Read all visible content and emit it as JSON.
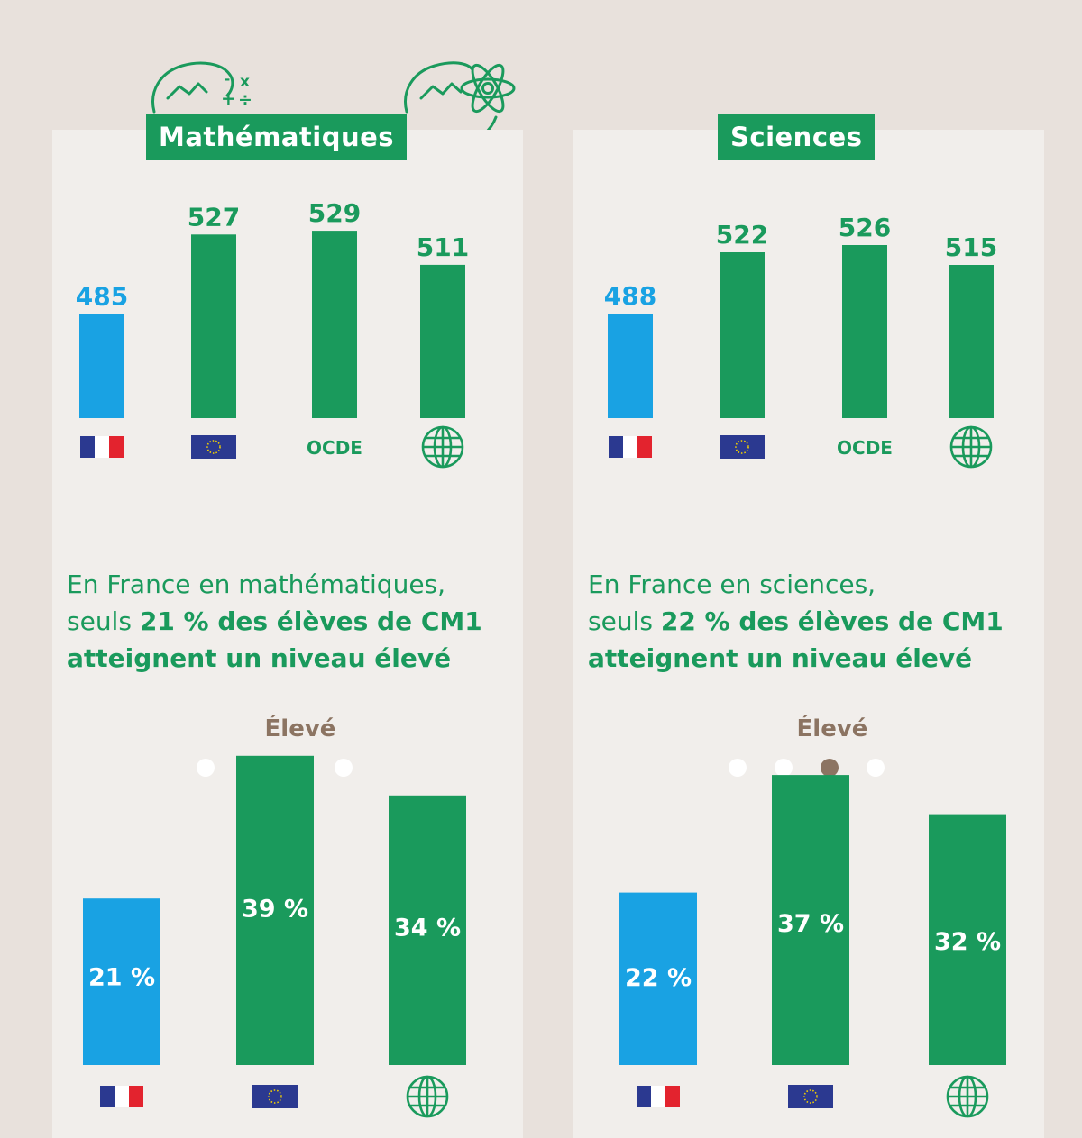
{
  "colors": {
    "background": "#e8e1dc",
    "panel": "#f1eeeb",
    "france": "#19a2e3",
    "comparison": "#1a9a5c",
    "level_accent": "#8c7462",
    "dot_inactive": "#ffffff"
  },
  "icons": {
    "france": "france-flag-icon",
    "europe": "eu-flag-icon",
    "world": "globe-icon"
  },
  "panels": [
    {
      "subject": "Mathématiques",
      "deco_icon": "math-operators-head-icon",
      "caption_light": "En France en mathématiques,",
      "caption_prefix": "seuls",
      "caption_bold1": "21 % des élèves de CM1",
      "caption_bold2": "atteignent un niveau élevé",
      "level_label": "Élevé",
      "level_dots": {
        "count": 4,
        "active_index": 2
      }
    },
    {
      "subject": "Sciences",
      "deco_icon": "atom-head-icon",
      "caption_light": "En France en sciences,",
      "caption_prefix": "seuls",
      "caption_bold1": "22 % des élèves de CM1",
      "caption_bold2": "atteignent un niveau élevé",
      "level_label": "Élevé",
      "level_dots": {
        "count": 4,
        "active_index": 2
      }
    }
  ],
  "chart_data": [
    {
      "type": "bar",
      "title": "Mathématiques",
      "categories": [
        "France",
        "Union européenne",
        "OCDE",
        "Monde"
      ],
      "category_labels": [
        "",
        "",
        "OCDE",
        ""
      ],
      "category_icons": [
        "france-flag-icon",
        "eu-flag-icon",
        "",
        "globe-icon"
      ],
      "values": [
        485,
        527,
        529,
        511
      ],
      "value_labels": [
        "485",
        "527",
        "529",
        "511"
      ],
      "bar_colors": [
        "#19a2e3",
        "#1a9a5c",
        "#1a9a5c",
        "#1a9a5c"
      ],
      "ylim": [
        430,
        530
      ],
      "grid": false,
      "legend": "none"
    },
    {
      "type": "bar",
      "title": "Sciences",
      "categories": [
        "France",
        "Union européenne",
        "OCDE",
        "Monde"
      ],
      "category_labels": [
        "",
        "",
        "OCDE",
        ""
      ],
      "category_icons": [
        "france-flag-icon",
        "eu-flag-icon",
        "",
        "globe-icon"
      ],
      "values": [
        488,
        522,
        526,
        515
      ],
      "value_labels": [
        "488",
        "522",
        "526",
        "515"
      ],
      "bar_colors": [
        "#19a2e3",
        "#1a9a5c",
        "#1a9a5c",
        "#1a9a5c"
      ],
      "ylim": [
        430,
        530
      ],
      "grid": false,
      "legend": "none"
    },
    {
      "type": "bar",
      "title": "Élevé",
      "categories": [
        "France",
        "Union européenne",
        "Monde"
      ],
      "category_icons": [
        "france-flag-icon",
        "eu-flag-icon",
        "globe-icon"
      ],
      "values": [
        21,
        39,
        34
      ],
      "value_labels": [
        "21 %",
        "39 %",
        "34 %"
      ],
      "bar_colors": [
        "#19a2e3",
        "#1a9a5c",
        "#1a9a5c"
      ],
      "ylim": [
        0,
        40
      ],
      "grid": false,
      "legend": "none"
    },
    {
      "type": "bar",
      "title": "Élevé",
      "categories": [
        "France",
        "Union européenne",
        "Monde"
      ],
      "category_icons": [
        "france-flag-icon",
        "eu-flag-icon",
        "globe-icon"
      ],
      "values": [
        22,
        37,
        32
      ],
      "value_labels": [
        "22 %",
        "37 %",
        "32 %"
      ],
      "bar_colors": [
        "#19a2e3",
        "#1a9a5c",
        "#1a9a5c"
      ],
      "ylim": [
        0,
        40
      ],
      "grid": false,
      "legend": "none"
    }
  ]
}
